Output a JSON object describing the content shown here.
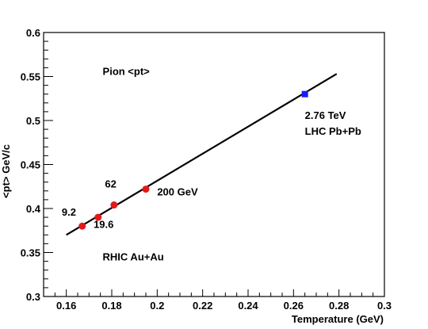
{
  "chart_data": {
    "type": "scatter",
    "title": "",
    "xlabel": "Temperature (GeV)",
    "ylabel": "<pt> GeV/c",
    "xlim": [
      0.15,
      0.3
    ],
    "ylim": [
      0.3,
      0.6
    ],
    "xticks": [
      "0.16",
      "0.18",
      "0.2",
      "0.22",
      "0.24",
      "0.26",
      "0.28",
      "0.3"
    ],
    "yticks": [
      "0.3",
      "0.35",
      "0.4",
      "0.45",
      "0.5",
      "0.55",
      "0.6"
    ],
    "grid": false,
    "fit_line": {
      "x": [
        0.16,
        0.279
      ],
      "y": [
        0.37,
        0.553
      ],
      "color": "#000000"
    },
    "series": [
      {
        "color": "#e31a1c",
        "marker": "circle",
        "x": [
          0.167,
          0.174,
          0.181,
          0.195
        ],
        "y": [
          0.38,
          0.39,
          0.404,
          0.422
        ]
      },
      {
        "color": "#1a1aff",
        "marker": "square",
        "x": [
          0.265
        ],
        "y": [
          0.53
        ]
      }
    ],
    "annotations": [
      {
        "text": "Pion <pt>",
        "x": 0.176,
        "y": 0.552
      },
      {
        "text": "2.76 TeV",
        "x": 0.265,
        "y": 0.502
      },
      {
        "text": "LHC Pb+Pb",
        "x": 0.265,
        "y": 0.484
      },
      {
        "text": "200 GeV",
        "x": 0.2,
        "y": 0.415
      },
      {
        "text": "62",
        "x": 0.177,
        "y": 0.424
      },
      {
        "text": "9.2",
        "x": 0.158,
        "y": 0.392
      },
      {
        "text": "19.6",
        "x": 0.172,
        "y": 0.378
      },
      {
        "text": "RHIC Au+Au",
        "x": 0.176,
        "y": 0.341
      }
    ]
  }
}
